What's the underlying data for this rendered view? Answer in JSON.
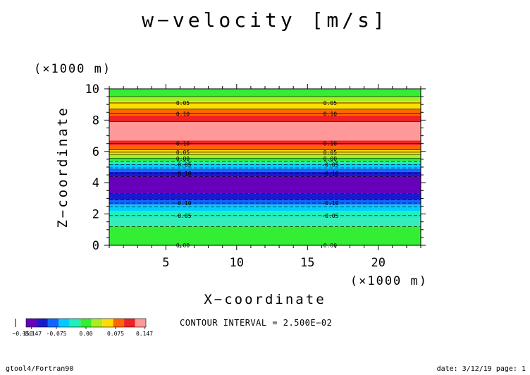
{
  "chart_data": {
    "type": "heatmap",
    "title": "w−velocity [m/s]",
    "xlabel": "X−coordinate",
    "ylabel": "Z−coordinate",
    "x_unit": "(×1000 m)",
    "y_unit": "(×1000 m)",
    "xlim": [
      1,
      23
    ],
    "ylim": [
      0,
      10
    ],
    "x_ticks": [
      5,
      10,
      15,
      20
    ],
    "y_ticks": [
      0,
      2,
      4,
      6,
      8,
      10
    ],
    "bands": [
      {
        "z0": 0.0,
        "z1": 1.2,
        "color": "#33ee33"
      },
      {
        "z0": 1.2,
        "z1": 1.7,
        "color": "#33eebb"
      },
      {
        "z0": 1.7,
        "z1": 2.2,
        "color": "#22eebb"
      },
      {
        "z0": 2.2,
        "z1": 2.6,
        "color": "#00ccff"
      },
      {
        "z0": 2.6,
        "z1": 2.9,
        "color": "#1166ff"
      },
      {
        "z0": 2.9,
        "z1": 3.3,
        "color": "#1a1acc"
      },
      {
        "z0": 3.3,
        "z1": 4.4,
        "color": "#6600bb"
      },
      {
        "z0": 4.4,
        "z1": 4.7,
        "color": "#1a1acc"
      },
      {
        "z0": 4.7,
        "z1": 4.9,
        "color": "#1166ff"
      },
      {
        "z0": 4.9,
        "z1": 5.2,
        "color": "#00ccff"
      },
      {
        "z0": 5.2,
        "z1": 5.4,
        "color": "#22eebb"
      },
      {
        "z0": 5.4,
        "z1": 5.6,
        "color": "#33ee33"
      },
      {
        "z0": 5.6,
        "z1": 5.8,
        "color": "#aaee22"
      },
      {
        "z0": 5.8,
        "z1": 6.1,
        "color": "#ffdd00"
      },
      {
        "z0": 6.1,
        "z1": 6.4,
        "color": "#ff6600"
      },
      {
        "z0": 6.4,
        "z1": 6.7,
        "color": "#ee2222"
      },
      {
        "z0": 6.7,
        "z1": 7.9,
        "color": "#ff9999"
      },
      {
        "z0": 7.9,
        "z1": 8.3,
        "color": "#ee2222"
      },
      {
        "z0": 8.3,
        "z1": 8.7,
        "color": "#ff6600"
      },
      {
        "z0": 8.7,
        "z1": 9.2,
        "color": "#ffdd00"
      },
      {
        "z0": 9.2,
        "z1": 9.5,
        "color": "#aaee22"
      },
      {
        "z0": 9.5,
        "z1": 10.0,
        "color": "#33ee33"
      }
    ],
    "contours": [
      {
        "z": 9.1,
        "label": "0.05",
        "dashed": false
      },
      {
        "z": 8.4,
        "label": "0.10",
        "dashed": false
      },
      {
        "z": 6.5,
        "label": "0.10",
        "dashed": false
      },
      {
        "z": 5.95,
        "label": "0.05",
        "dashed": false
      },
      {
        "z": 5.55,
        "label": "0.00",
        "dashed": false
      },
      {
        "z": 5.15,
        "label": "-0.05",
        "dashed": true
      },
      {
        "z": 4.6,
        "label": "-0.10",
        "dashed": true
      },
      {
        "z": 2.7,
        "label": "-0.10",
        "dashed": true
      },
      {
        "z": 1.9,
        "label": "-0.05",
        "dashed": true
      },
      {
        "z": 0.0,
        "label": "0.00",
        "dashed": false
      }
    ],
    "extra_lines": [
      9.5,
      8.7,
      7.9,
      6.1,
      5.8,
      5.35,
      4.95,
      4.4,
      3.3,
      2.9,
      2.45,
      1.2
    ],
    "label_x_positions": [
      6.2,
      16.6
    ],
    "colorbar": {
      "colors": [
        "#6600bb",
        "#1a1acc",
        "#1166ff",
        "#00ccff",
        "#22eebb",
        "#33ee33",
        "#aaee22",
        "#ffdd00",
        "#ff6600",
        "#ee2222",
        "#ff9999"
      ],
      "tick_labels": [
        "-0.147",
        "-0.075",
        "0.00",
        "0.075",
        "0.147"
      ],
      "overlap_label": "−0.150"
    },
    "contour_interval": "CONTOUR INTERVAL = 2.500E−02"
  },
  "footer": {
    "left": "gtool4/Fortran90",
    "right": "date: 3/12/19 page: 1"
  }
}
